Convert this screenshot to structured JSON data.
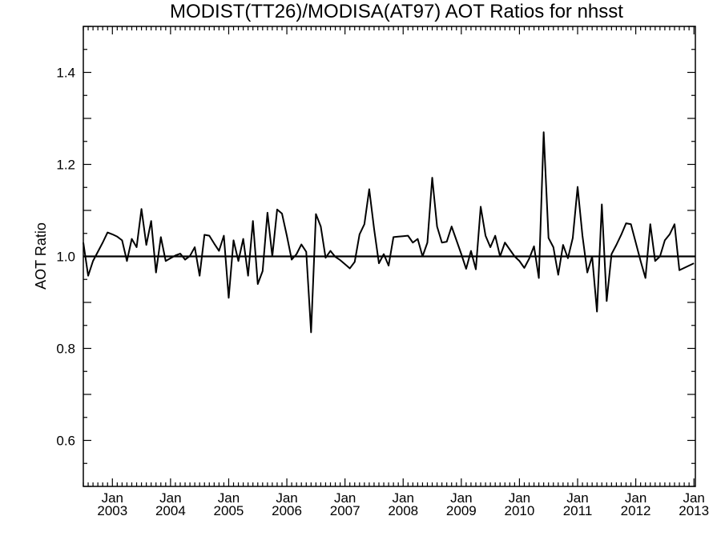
{
  "chart_data": {
    "type": "line",
    "title": "MODIST(TT26)/MODISA(AT97)  AOT Ratios for nhsst",
    "xlabel": "",
    "ylabel": "AOT Ratio",
    "ylim": [
      0.5,
      1.5
    ],
    "xlim": [
      "2002-07",
      "2013-01"
    ],
    "y_ticks": [
      {
        "value": 0.6,
        "label": "0.6"
      },
      {
        "value": 0.8,
        "label": "0.8"
      },
      {
        "value": 1.0,
        "label": "1.0"
      },
      {
        "value": 1.2,
        "label": "1.2"
      },
      {
        "value": 1.4,
        "label": "1.4"
      }
    ],
    "x_ticks": [
      {
        "date": "2003-01",
        "month": "Jan",
        "year": "2003"
      },
      {
        "date": "2004-01",
        "month": "Jan",
        "year": "2004"
      },
      {
        "date": "2005-01",
        "month": "Jan",
        "year": "2005"
      },
      {
        "date": "2006-01",
        "month": "Jan",
        "year": "2006"
      },
      {
        "date": "2007-01",
        "month": "Jan",
        "year": "2007"
      },
      {
        "date": "2008-01",
        "month": "Jan",
        "year": "2008"
      },
      {
        "date": "2009-01",
        "month": "Jan",
        "year": "2009"
      },
      {
        "date": "2010-01",
        "month": "Jan",
        "year": "2010"
      },
      {
        "date": "2011-01",
        "month": "Jan",
        "year": "2011"
      },
      {
        "date": "2012-01",
        "month": "Jan",
        "year": "2012"
      },
      {
        "date": "2013-01",
        "month": "Jan",
        "year": "2013"
      }
    ],
    "reference_line": {
      "y": 1.0
    },
    "grid": false,
    "series": [
      {
        "name": "",
        "color": "#000000",
        "points": [
          [
            "2002-07",
            1.03
          ],
          [
            "2002-08",
            0.958
          ],
          [
            "2002-09",
            0.99
          ],
          [
            "2002-10",
            1.01
          ],
          [
            "2002-11",
            1.03
          ],
          [
            "2002-12",
            1.052
          ],
          [
            "2003-01",
            1.048
          ],
          [
            "2003-02",
            1.043
          ],
          [
            "2003-03",
            1.035
          ],
          [
            "2003-04",
            0.99
          ],
          [
            "2003-05",
            1.038
          ],
          [
            "2003-06",
            1.02
          ],
          [
            "2003-07",
            1.103
          ],
          [
            "2003-08",
            1.025
          ],
          [
            "2003-09",
            1.077
          ],
          [
            "2003-10",
            0.965
          ],
          [
            "2003-11",
            1.042
          ],
          [
            "2003-12",
            0.99
          ],
          [
            "2004-01",
            0.996
          ],
          [
            "2004-02",
            1.002
          ],
          [
            "2004-03",
            1.006
          ],
          [
            "2004-04",
            0.993
          ],
          [
            "2004-05",
            1.001
          ],
          [
            "2004-06",
            1.02
          ],
          [
            "2004-07",
            0.958
          ],
          [
            "2004-08",
            1.047
          ],
          [
            "2004-09",
            1.045
          ],
          [
            "2004-10",
            1.028
          ],
          [
            "2004-11",
            1.012
          ],
          [
            "2004-12",
            1.045
          ],
          [
            "2005-01",
            0.91
          ],
          [
            "2005-02",
            1.035
          ],
          [
            "2005-03",
            0.99
          ],
          [
            "2005-04",
            1.038
          ],
          [
            "2005-05",
            0.958
          ],
          [
            "2005-06",
            1.077
          ],
          [
            "2005-07",
            0.94
          ],
          [
            "2005-08",
            0.968
          ],
          [
            "2005-09",
            1.095
          ],
          [
            "2005-10",
            1.0
          ],
          [
            "2005-11",
            1.102
          ],
          [
            "2005-12",
            1.093
          ],
          [
            "2006-01",
            1.045
          ],
          [
            "2006-02",
            0.993
          ],
          [
            "2006-03",
            1.005
          ],
          [
            "2006-04",
            1.026
          ],
          [
            "2006-05",
            1.01
          ],
          [
            "2006-06",
            0.835
          ],
          [
            "2006-07",
            1.092
          ],
          [
            "2006-08",
            1.065
          ],
          [
            "2006-09",
            0.997
          ],
          [
            "2006-10",
            1.012
          ],
          [
            "2006-11",
            0.999
          ],
          [
            "2006-12",
            0.992
          ],
          [
            "2007-01",
            0.983
          ],
          [
            "2007-02",
            0.974
          ],
          [
            "2007-03",
            0.988
          ],
          [
            "2007-04",
            1.048
          ],
          [
            "2007-05",
            1.07
          ],
          [
            "2007-06",
            1.146
          ],
          [
            "2007-07",
            1.06
          ],
          [
            "2007-08",
            0.985
          ],
          [
            "2007-09",
            1.005
          ],
          [
            "2007-10",
            0.98
          ],
          [
            "2007-11",
            1.042
          ],
          [
            "2007-12",
            1.043
          ],
          [
            "2008-01",
            1.044
          ],
          [
            "2008-02",
            1.045
          ],
          [
            "2008-03",
            1.03
          ],
          [
            "2008-04",
            1.038
          ],
          [
            "2008-05",
            1.0
          ],
          [
            "2008-06",
            1.03
          ],
          [
            "2008-07",
            1.171
          ],
          [
            "2008-08",
            1.065
          ],
          [
            "2008-09",
            1.03
          ],
          [
            "2008-10",
            1.032
          ],
          [
            "2008-11",
            1.065
          ],
          [
            "2008-12",
            1.035
          ],
          [
            "2009-01",
            1.005
          ],
          [
            "2009-02",
            0.973
          ],
          [
            "2009-03",
            1.012
          ],
          [
            "2009-04",
            0.972
          ],
          [
            "2009-05",
            1.108
          ],
          [
            "2009-06",
            1.045
          ],
          [
            "2009-07",
            1.02
          ],
          [
            "2009-08",
            1.045
          ],
          [
            "2009-09",
            1.0
          ],
          [
            "2009-10",
            1.03
          ],
          [
            "2009-11",
            1.015
          ],
          [
            "2009-12",
            1.0
          ],
          [
            "2010-01",
            0.99
          ],
          [
            "2010-02",
            0.975
          ],
          [
            "2010-03",
            0.995
          ],
          [
            "2010-04",
            1.022
          ],
          [
            "2010-05",
            0.953
          ],
          [
            "2010-06",
            1.27
          ],
          [
            "2010-07",
            1.04
          ],
          [
            "2010-08",
            1.02
          ],
          [
            "2010-09",
            0.96
          ],
          [
            "2010-10",
            1.025
          ],
          [
            "2010-11",
            0.996
          ],
          [
            "2010-12",
            1.04
          ],
          [
            "2011-01",
            1.151
          ],
          [
            "2011-02",
            1.045
          ],
          [
            "2011-03",
            0.965
          ],
          [
            "2011-04",
            1.0
          ],
          [
            "2011-05",
            0.88
          ],
          [
            "2011-06",
            1.113
          ],
          [
            "2011-07",
            0.903
          ],
          [
            "2011-08",
            1.005
          ],
          [
            "2011-09",
            1.025
          ],
          [
            "2011-10",
            1.047
          ],
          [
            "2011-11",
            1.072
          ],
          [
            "2011-12",
            1.07
          ],
          [
            "2012-01",
            1.03
          ],
          [
            "2012-02",
            0.99
          ],
          [
            "2012-03",
            0.953
          ],
          [
            "2012-04",
            1.07
          ],
          [
            "2012-05",
            0.99
          ],
          [
            "2012-06",
            1.0
          ],
          [
            "2012-07",
            1.035
          ],
          [
            "2012-08",
            1.048
          ],
          [
            "2012-09",
            1.07
          ],
          [
            "2012-10",
            0.97
          ],
          [
            "2012-11",
            0.975
          ],
          [
            "2012-12",
            0.98
          ],
          [
            "2013-01",
            0.985
          ]
        ]
      }
    ]
  }
}
